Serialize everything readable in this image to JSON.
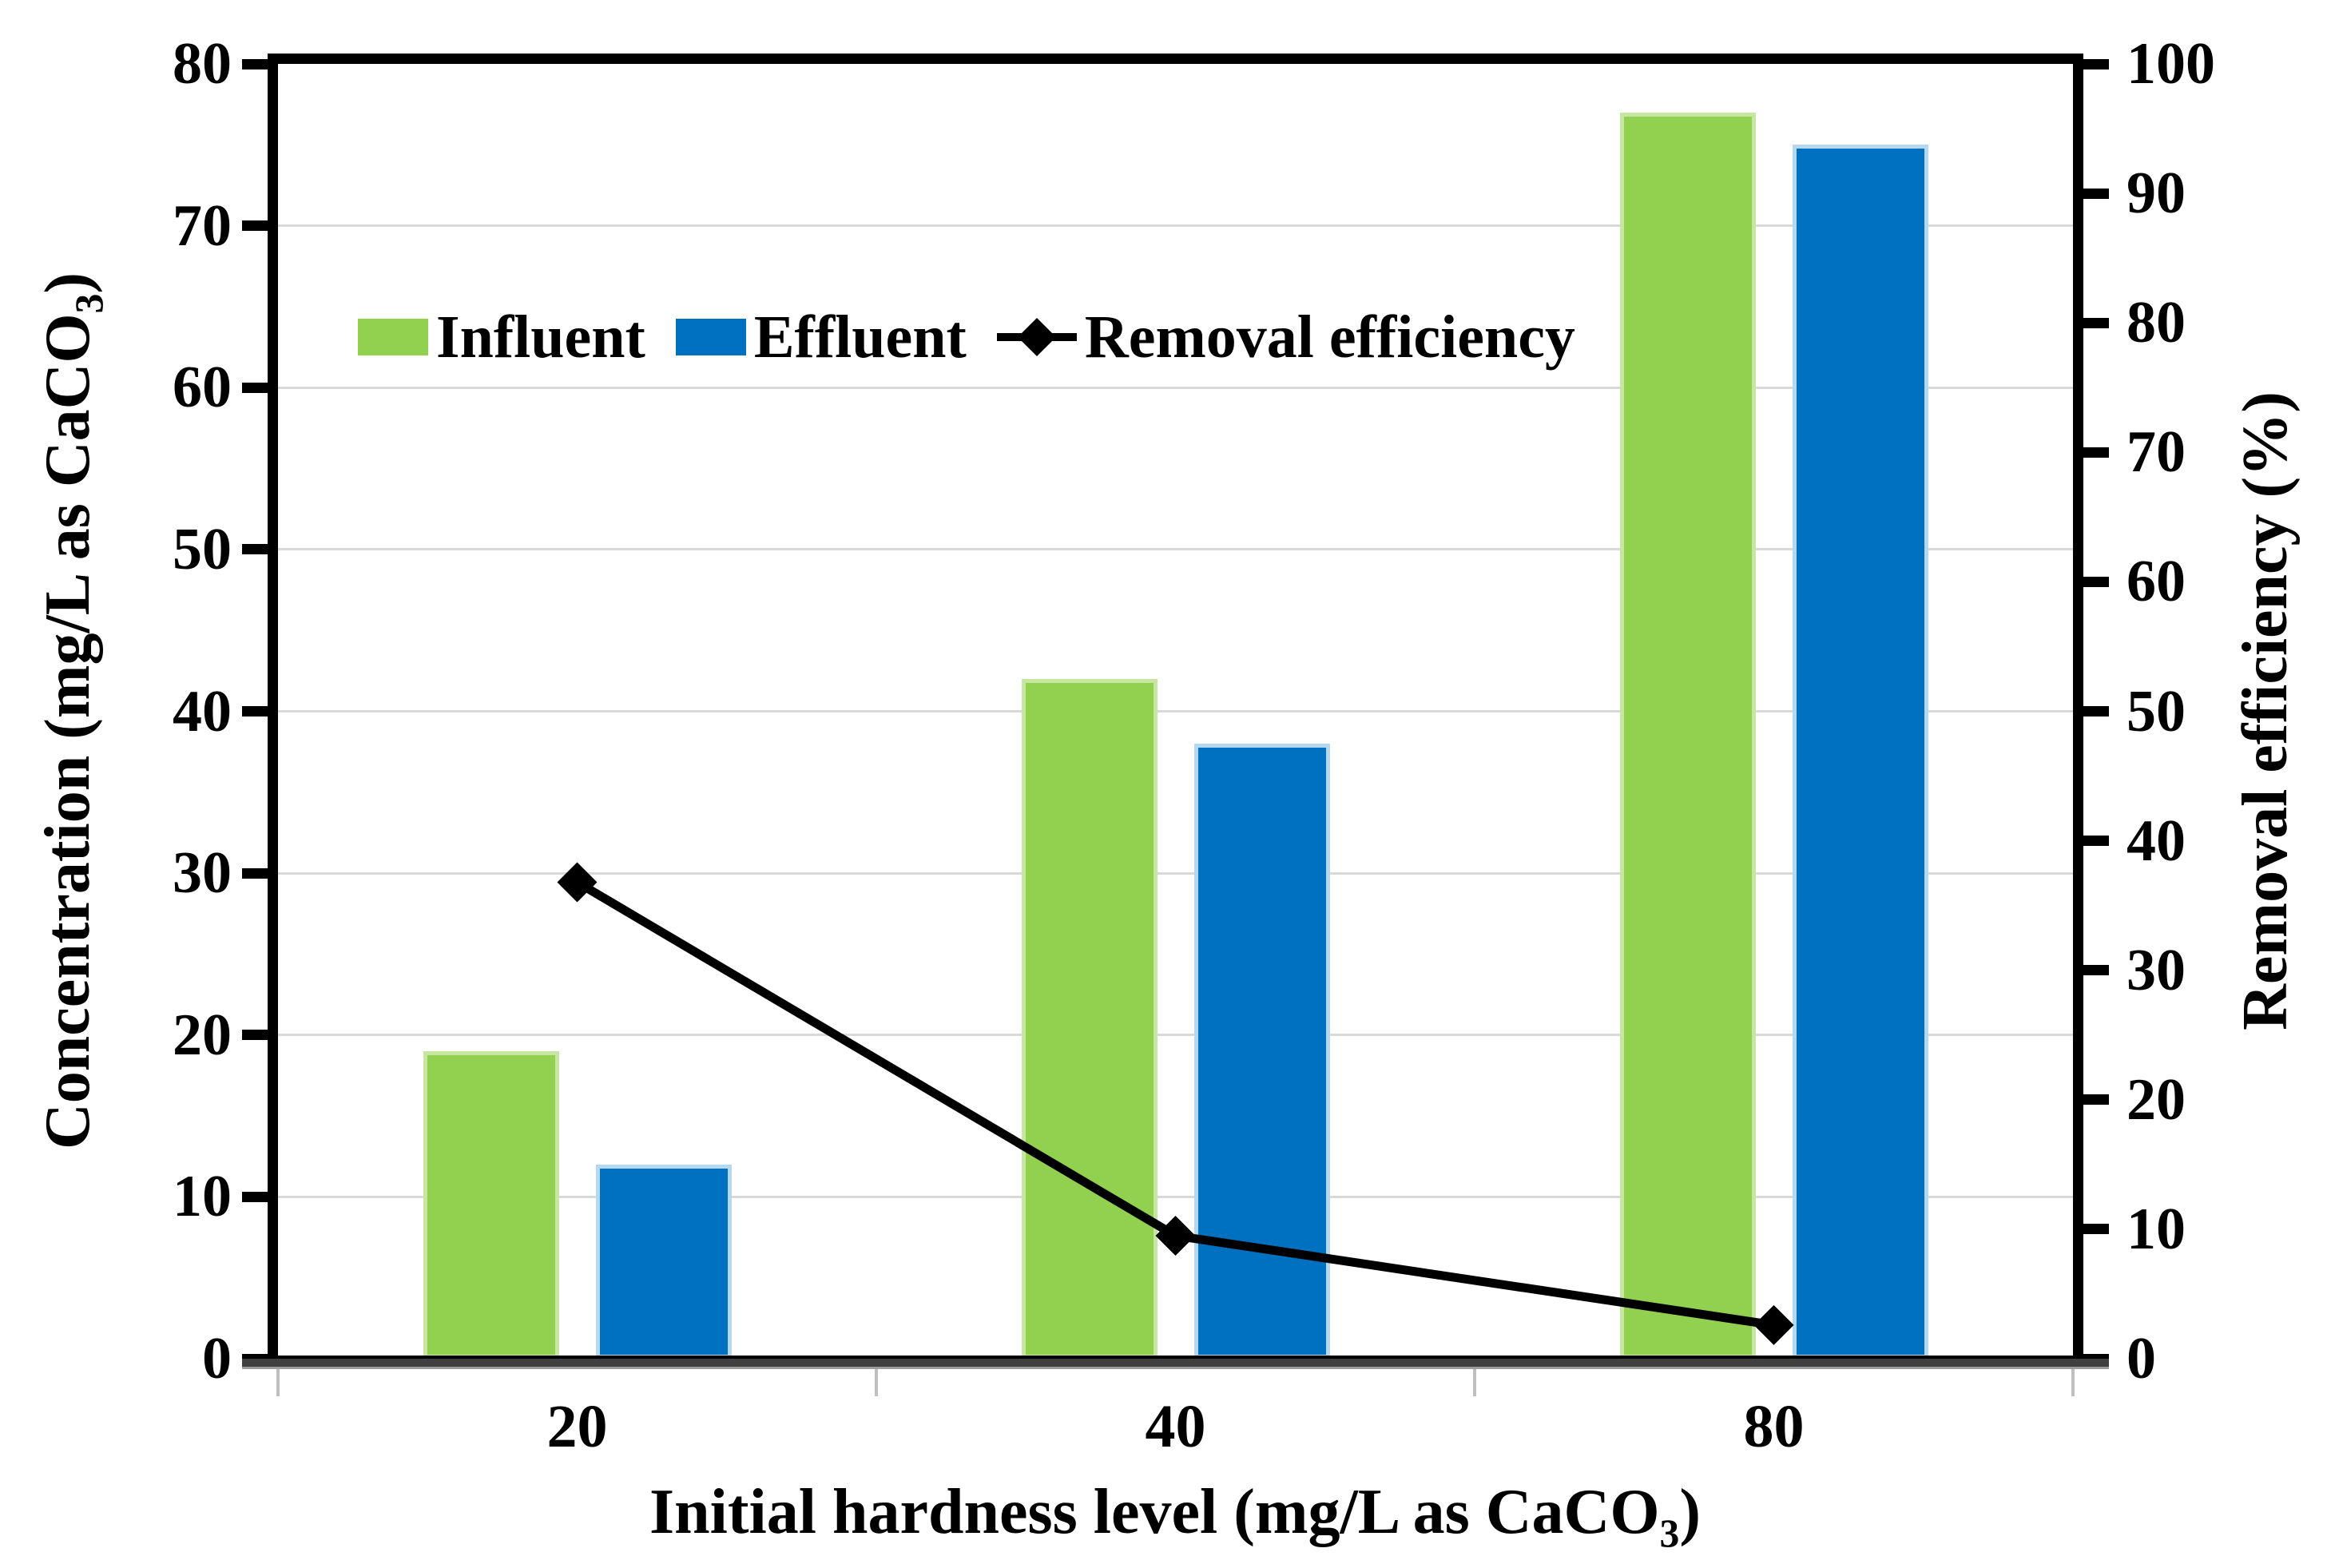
{
  "chart_data": {
    "type": "bar",
    "subtype": "grouped-bar-with-line-overlay",
    "categories": [
      "20",
      "40",
      "80"
    ],
    "series": [
      {
        "name": "Influent",
        "type": "bar",
        "axis": "left",
        "color": "#92D050",
        "edge_color": "#C6E6A1",
        "values": [
          19,
          42,
          77
        ]
      },
      {
        "name": "Effluent",
        "type": "bar",
        "axis": "left",
        "color": "#0070C0",
        "edge_color": "#B4D8F0",
        "values": [
          12,
          38,
          75
        ]
      },
      {
        "name": "Removal efficiency",
        "type": "line",
        "axis": "right",
        "color": "#000000",
        "marker": "diamond",
        "values": [
          36.8,
          9.5,
          2.6
        ]
      }
    ],
    "left_axis": {
      "label": "Concentration (mg/L as CaCO3)",
      "label_prefix": "Concentration (mg/L as CaCO",
      "label_sub": "3",
      "label_suffix": ")",
      "min": 0,
      "max": 80,
      "step": 10,
      "ticks": [
        "0",
        "10",
        "20",
        "30",
        "40",
        "50",
        "60",
        "70",
        "80"
      ]
    },
    "right_axis": {
      "label": "Removal efficiency (%)",
      "min": 0,
      "max": 100,
      "step": 10,
      "ticks": [
        "0",
        "10",
        "20",
        "30",
        "40",
        "50",
        "60",
        "70",
        "80",
        "90",
        "100"
      ]
    },
    "x_axis": {
      "label": "Initial hardness level (mg/L as CaCO3)",
      "label_prefix": "Initial hardness level (mg/L as CaCO",
      "label_sub": "3",
      "label_suffix": ")",
      "tick_labels": [
        "20",
        "40",
        "80"
      ]
    },
    "legend": {
      "position": "inside-top-left",
      "entries": [
        "Influent",
        "Effluent",
        "Removal efficiency"
      ]
    },
    "grid": {
      "horizontal": true,
      "color": "#D9D9D9"
    }
  }
}
